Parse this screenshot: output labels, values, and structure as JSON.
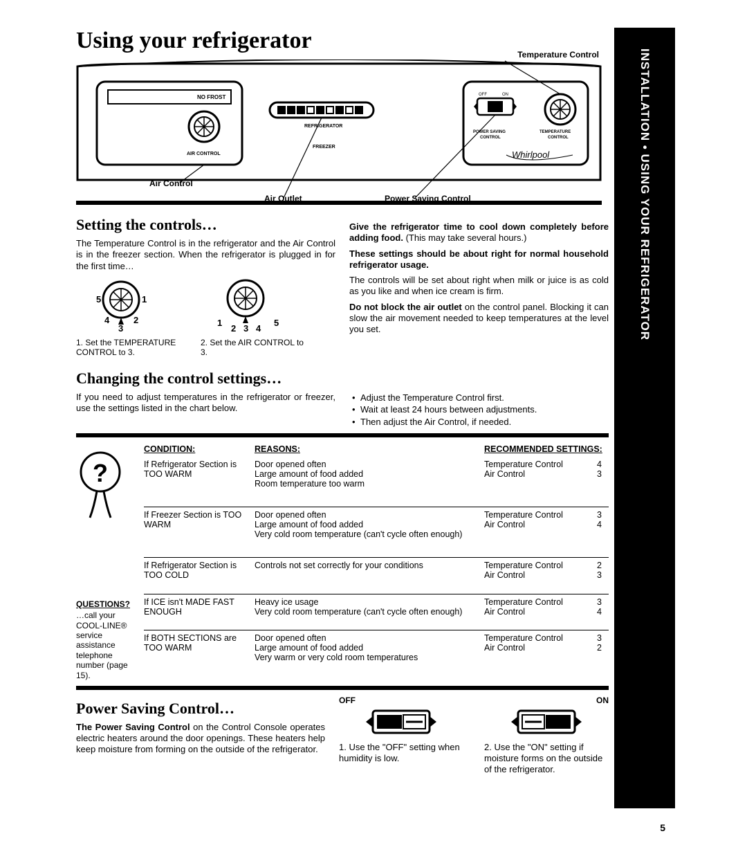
{
  "title": "Using your refrigerator",
  "sidebar": "INSTALLATION • USING YOUR REFRIGERATOR",
  "panel": {
    "label_temp": "Temperature Control",
    "label_air": "Air Control",
    "label_outlet": "Air Outlet",
    "label_power": "Power Saving Control",
    "no_frost": "NO FROST",
    "air_control_small": "AIR CONTROL",
    "brand": "Whirlpool",
    "power_saving_small": "POWER SAVING CONTROL",
    "temp_small": "TEMPERATURE CONTROL",
    "off": "OFF",
    "on": "ON",
    "refrigerator": "REFRIGERATOR",
    "freezer": "FREEZER"
  },
  "setting": {
    "heading": "Setting the controls…",
    "p1": "The Temperature Control is in the refrigerator and the Air Control is in the freezer section. When the refrigerator is plugged in for the first time…",
    "dial1_nums": [
      "5",
      "1",
      "4",
      "2",
      "3"
    ],
    "dial2_nums": [
      "1",
      "5",
      "2",
      "3",
      "4"
    ],
    "cap1": "1. Set the TEMPERATURE CONTROL to 3.",
    "cap2": "2. Set the AIR CONTROL to 3.",
    "r1_bold": "Give the refrigerator time to cool down completely before adding food.",
    "r1_rest": " (This may take several hours.)",
    "r2_bold": "These settings should be about right for normal household refrigerator usage.",
    "r3": "The controls will be set about right when milk or juice is as cold as you like and when ice cream is firm.",
    "r4_bold": "Do not block the air outlet",
    "r4_rest": " on the control panel. Blocking it can slow the air movement needed to keep temperatures at the level you set."
  },
  "changing": {
    "heading": "Changing the control settings…",
    "p1": "If you need to adjust temperatures in the refrigerator or freezer, use the settings listed in the chart below.",
    "b1": "Adjust the Temperature Control first.",
    "b2": "Wait at least 24 hours between adjustments.",
    "b3": "Then adjust the Air Control, if needed."
  },
  "questions": {
    "head": "QUESTIONS?",
    "body": "…call your COOL-LINE® service assistance telephone number (page 15)."
  },
  "table": {
    "h1": "CONDITION:",
    "h2": "REASONS:",
    "h3": "RECOMMENDED SETTINGS:",
    "rows": [
      {
        "cond": "If Refrigerator Section is TOO WARM",
        "reasons": "Door opened often\nLarge amount of food added\nRoom temperature too warm",
        "tc": "4",
        "ac": "3"
      },
      {
        "cond": "If Freezer Section is TOO WARM",
        "reasons": "Door opened often\nLarge amount of food added\nVery cold room temperature (can't cycle often enough)",
        "tc": "3",
        "ac": "4"
      },
      {
        "cond": "If Refrigerator Section is TOO COLD",
        "reasons": "Controls not set correctly for your conditions",
        "tc": "2",
        "ac": "3"
      },
      {
        "cond": "If ICE isn't MADE FAST ENOUGH",
        "reasons": "Heavy ice usage\nVery cold room temperature (can't cycle often enough)",
        "tc": "3",
        "ac": "4"
      },
      {
        "cond": "If BOTH SECTIONS are TOO WARM",
        "reasons": "Door opened often\nLarge amount of food added\nVery warm or very cold room temperatures",
        "tc": "3",
        "ac": "2"
      }
    ],
    "tc_label": "Temperature Control",
    "ac_label": "Air Control"
  },
  "power": {
    "heading": "Power Saving Control…",
    "p_bold": "The Power Saving Control",
    "p_rest": " on the Control Console operates electric heaters around the door openings. These heaters help keep moisture from forming on the outside of the refrigerator.",
    "off": "OFF",
    "on": "ON",
    "cap1": "1. Use the \"OFF\" setting when humidity is low.",
    "cap2": "2. Use the \"ON\" setting if moisture forms on the outside of the refrigerator."
  },
  "page_number": "5",
  "colors": {
    "ink": "#000000",
    "paper": "#ffffff"
  }
}
